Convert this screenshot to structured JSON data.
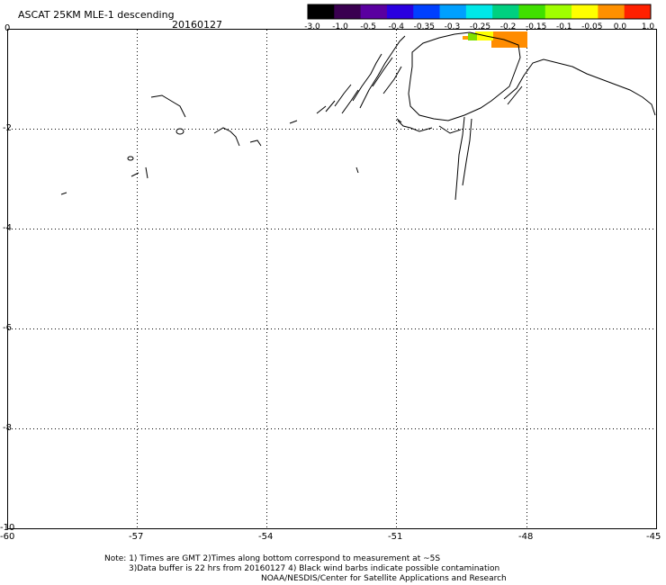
{
  "title": {
    "product": "ASCAT 25KM MLE-1 descending",
    "date": "20160127"
  },
  "colorbar": {
    "labels": [
      "-3.0",
      "-1.0",
      "-0.5",
      "-0.4",
      "-0.35",
      "-0.3",
      "-0.25",
      "-0.2",
      "-0.15",
      "-0.1",
      "-0.05",
      "0.0",
      "1.0"
    ],
    "colors": [
      "#000000",
      "#3a0050",
      "#5a00a0",
      "#2a00e0",
      "#0040ff",
      "#00a0ff",
      "#00e8e8",
      "#00d080",
      "#40e000",
      "#a0ff00",
      "#ffff00",
      "#ff9000",
      "#ff2000"
    ]
  },
  "axes": {
    "x_ticks": [
      "-60",
      "-57",
      "-54",
      "-51",
      "-48",
      "-45"
    ],
    "y_ticks": [
      "0",
      "-2",
      "-4",
      "-6",
      "-8",
      "-10"
    ]
  },
  "notes": {
    "line1": "Note: 1) Times are GMT 2)Times along bottom correspond to measurement at ~5S",
    "line2": "3)Data buffer is 22 hrs from 20160127 4) Black wind barbs indicate possible contamination",
    "line3": "NOAA/NESDIS/Center for Satellite Applications and Research"
  },
  "swath_colors": {
    "orange": "#ff8c00",
    "yellow": "#ffff00",
    "green": "#80e000"
  }
}
